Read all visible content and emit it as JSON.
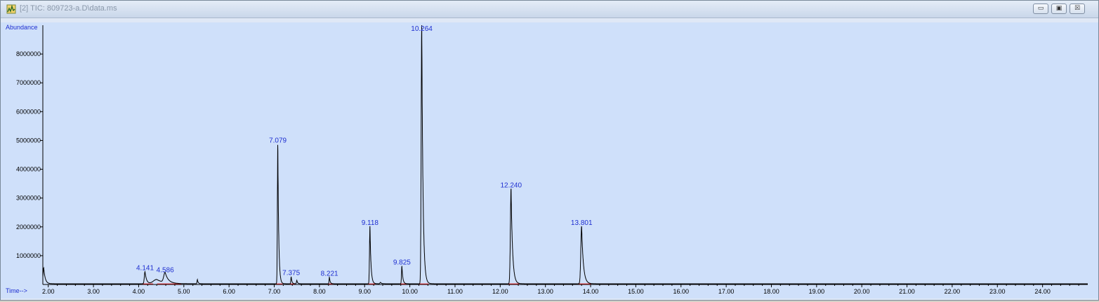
{
  "window": {
    "title": "[2] TIC: 809723-a.D\\data.ms",
    "controls": [
      "minimize-icon",
      "maximize-icon",
      "close-icon"
    ],
    "control_glyphs": {
      "minimize": "▭",
      "maximize": "▣",
      "close": "☒"
    }
  },
  "colors": {
    "plot_bg": "#cfe0fa",
    "trace": "#000000",
    "labels": "#1f2fd0",
    "baseline_marks": "#e02020"
  },
  "chart_data": {
    "type": "line",
    "xlabel": "Time-->",
    "ylabel": "Abundance",
    "xlim": [
      1.88,
      25.0
    ],
    "ylim": [
      0,
      9000000
    ],
    "x_ticks": [
      "2.00",
      "3.00",
      "4.00",
      "5.00",
      "6.00",
      "7.00",
      "8.00",
      "9.00",
      "10.00",
      "11.00",
      "12.00",
      "13.00",
      "14.00",
      "15.00",
      "16.00",
      "17.00",
      "18.00",
      "19.00",
      "20.00",
      "21.00",
      "22.00",
      "23.00",
      "24.00"
    ],
    "y_ticks": [
      "1000000",
      "2000000",
      "3000000",
      "4000000",
      "5000000",
      "6000000",
      "7000000",
      "8000000"
    ],
    "peaks": [
      {
        "rt": 4.141,
        "label": "4.141",
        "height": 420000,
        "width": 0.03
      },
      {
        "rt": 4.586,
        "label": "4.586",
        "height": 350000,
        "width": 0.06
      },
      {
        "rt": 7.079,
        "label": "7.079",
        "height": 4850000,
        "width": 0.018
      },
      {
        "rt": 7.375,
        "label": "7.375",
        "height": 250000,
        "width": 0.015
      },
      {
        "rt": 8.221,
        "label": "8.221",
        "height": 230000,
        "width": 0.015
      },
      {
        "rt": 9.118,
        "label": "9.118",
        "height": 2000000,
        "width": 0.02
      },
      {
        "rt": 9.825,
        "label": "9.825",
        "height": 620000,
        "width": 0.018
      },
      {
        "rt": 10.264,
        "label": "10.264",
        "height": 9000000,
        "width": 0.025
      },
      {
        "rt": 12.24,
        "label": "12.240",
        "height": 3300000,
        "width": 0.03
      },
      {
        "rt": 13.801,
        "label": "13.801",
        "height": 2000000,
        "width": 0.035
      }
    ],
    "minor_peaks": [
      {
        "rt": 1.9,
        "height": 550000,
        "width": 0.03
      },
      {
        "rt": 4.4,
        "height": 150000,
        "width": 0.15
      },
      {
        "rt": 5.3,
        "height": 150000,
        "width": 0.015
      },
      {
        "rt": 7.5,
        "height": 120000,
        "width": 0.015
      },
      {
        "rt": 9.35,
        "height": 50000,
        "width": 0.02
      }
    ]
  }
}
